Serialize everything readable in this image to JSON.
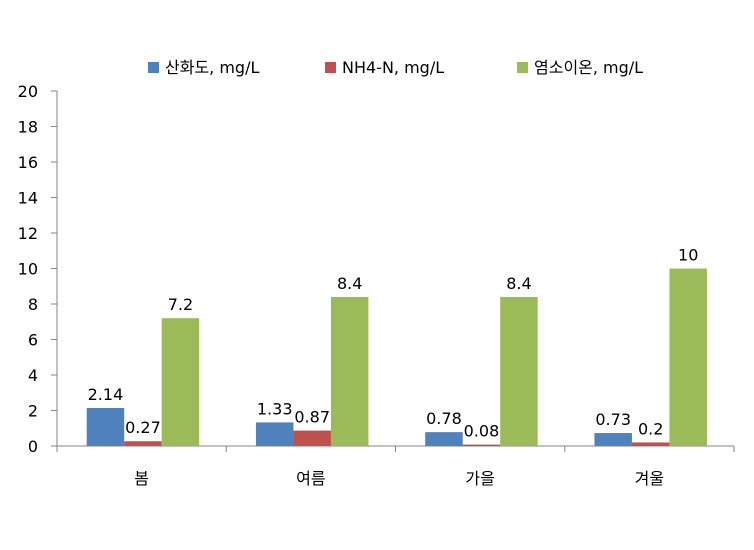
{
  "chart_data": {
    "type": "bar",
    "categories": [
      "봄",
      "여름",
      "가을",
      "겨울"
    ],
    "series": [
      {
        "name": "산화도, mg/L",
        "color": "#4F81BD",
        "values": [
          2.14,
          1.33,
          0.78,
          0.73
        ],
        "labels": [
          "2.14",
          "1.33",
          "0.78",
          "0.73"
        ]
      },
      {
        "name": "NH4-N, mg/L",
        "color": "#C0504D",
        "values": [
          0.27,
          0.87,
          0.08,
          0.2
        ],
        "labels": [
          "0.27",
          "0.87",
          "0.08",
          "0.2"
        ]
      },
      {
        "name": "염소이온, mg/L",
        "color": "#9BBB59",
        "values": [
          7.2,
          8.4,
          8.4,
          10
        ],
        "labels": [
          "7.2",
          "8.4",
          "8.4",
          "10"
        ]
      }
    ],
    "ylim": [
      0,
      20
    ],
    "yticks": [
      "0",
      "2",
      "4",
      "6",
      "8",
      "10",
      "12",
      "14",
      "16",
      "18",
      "20"
    ],
    "grid": false,
    "legend": "top"
  }
}
